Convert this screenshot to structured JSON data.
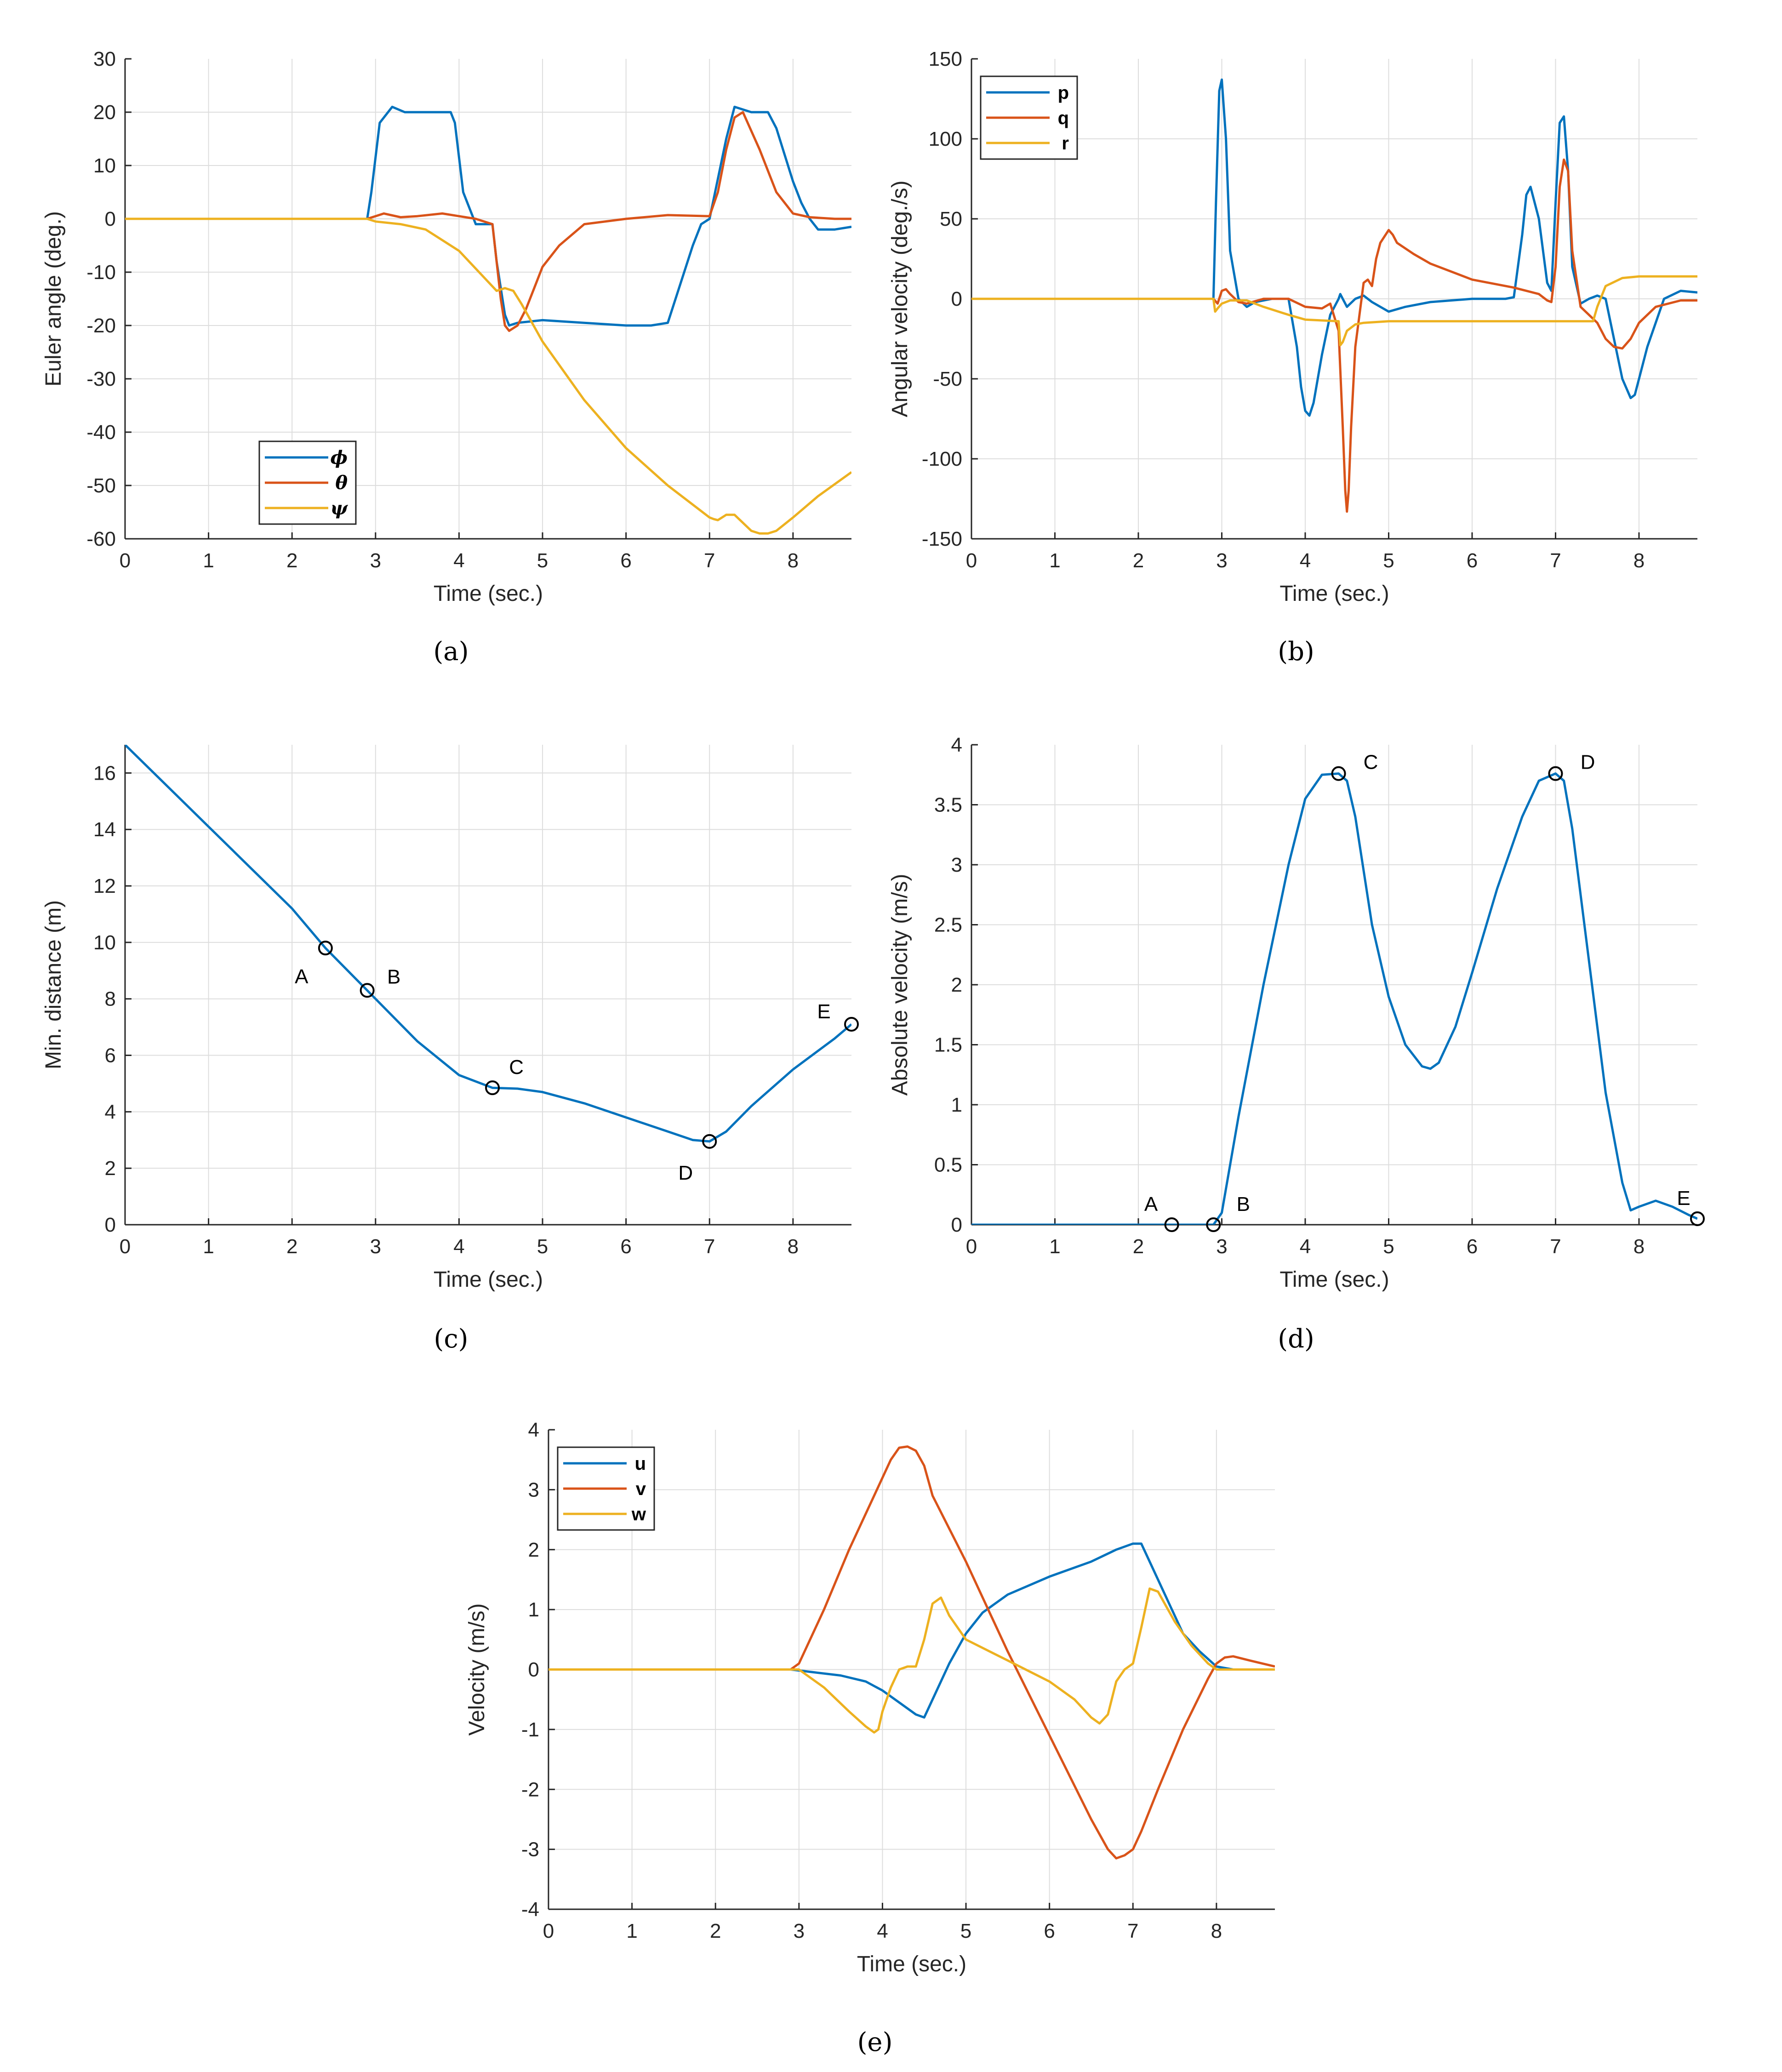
{
  "colors": {
    "blue": "#0072BD",
    "red": "#D95319",
    "yellow": "#EDB120",
    "grid": "#DDDDDD"
  },
  "panel_labels": [
    "(a)",
    "(b)",
    "(c)",
    "(d)",
    "(e)"
  ],
  "chart_data": [
    {
      "id": "a",
      "type": "line",
      "xlabel": "Time (sec.)",
      "ylabel": "Euler angle (deg.)",
      "xlim": [
        0,
        8.7
      ],
      "ylim": [
        -60,
        30
      ],
      "xticks": [
        0,
        1,
        2,
        3,
        4,
        5,
        6,
        7,
        8
      ],
      "yticks": [
        -60,
        -50,
        -40,
        -30,
        -20,
        -10,
        0,
        10,
        20,
        30
      ],
      "legend": {
        "position": "bottom-left",
        "entries": [
          "ϕ",
          "θ",
          "ψ"
        ]
      },
      "series": [
        {
          "name": "ϕ",
          "color": "blue",
          "x": [
            0,
            2.9,
            2.95,
            3.05,
            3.2,
            3.35,
            3.5,
            3.9,
            3.95,
            4.05,
            4.2,
            4.4,
            4.45,
            4.55,
            4.6,
            4.7,
            5,
            5.5,
            6,
            6.3,
            6.5,
            6.8,
            6.9,
            7,
            7.2,
            7.3,
            7.5,
            7.7,
            7.8,
            7.9,
            8,
            8.1,
            8.2,
            8.3,
            8.5,
            8.7
          ],
          "y": [
            0,
            0,
            5,
            18,
            21,
            20,
            20,
            20,
            18,
            5,
            -1,
            -1,
            -8,
            -18,
            -20,
            -19.5,
            -19,
            -19.5,
            -20,
            -20,
            -19.5,
            -5,
            -1,
            0,
            15,
            21,
            20,
            20,
            17,
            12,
            7,
            3,
            0,
            -2,
            -2,
            -1.5
          ]
        },
        {
          "name": "θ",
          "color": "red",
          "x": [
            0,
            2.9,
            3.0,
            3.1,
            3.3,
            3.5,
            3.8,
            4.0,
            4.2,
            4.4,
            4.5,
            4.55,
            4.6,
            4.65,
            4.7,
            4.8,
            4.9,
            5.0,
            5.2,
            5.5,
            6.0,
            6.5,
            7.0,
            7.1,
            7.2,
            7.3,
            7.4,
            7.6,
            7.8,
            8.0,
            8.2,
            8.5,
            8.7
          ],
          "y": [
            0,
            0,
            0.5,
            1,
            0.3,
            0.5,
            1,
            0.5,
            0,
            -1,
            -15,
            -20,
            -21,
            -20.5,
            -20,
            -17,
            -13,
            -9,
            -5,
            -1,
            0,
            0.7,
            0.5,
            5,
            13,
            19,
            20,
            13,
            5,
            1,
            0.3,
            0,
            0
          ]
        },
        {
          "name": "ψ",
          "color": "yellow",
          "x": [
            0,
            2.9,
            3.0,
            3.3,
            3.6,
            4.0,
            4.3,
            4.45,
            4.55,
            4.65,
            4.75,
            5.0,
            5.5,
            6.0,
            6.5,
            7.0,
            7.05,
            7.1,
            7.2,
            7.3,
            7.4,
            7.5,
            7.6,
            7.7,
            7.8,
            8.0,
            8.3,
            8.7
          ],
          "y": [
            0,
            0,
            -0.5,
            -1,
            -2,
            -6,
            -11,
            -13.5,
            -13,
            -13.5,
            -16,
            -23,
            -34,
            -43,
            -50,
            -56,
            -56.3,
            -56.5,
            -55.5,
            -55.5,
            -57,
            -58.5,
            -59,
            -59,
            -58.5,
            -56,
            -52,
            -47.5
          ]
        }
      ]
    },
    {
      "id": "b",
      "type": "line",
      "xlabel": "Time (sec.)",
      "ylabel": "Angular velocity (deg./s)",
      "xlim": [
        0,
        8.7
      ],
      "ylim": [
        -150,
        150
      ],
      "xticks": [
        0,
        1,
        2,
        3,
        4,
        5,
        6,
        7,
        8
      ],
      "yticks": [
        -150,
        -100,
        -50,
        0,
        50,
        100,
        150
      ],
      "legend": {
        "position": "top-left",
        "entries": [
          "p",
          "q",
          "r"
        ]
      },
      "series": [
        {
          "name": "p",
          "color": "blue",
          "x": [
            0,
            2.9,
            2.93,
            2.97,
            3.0,
            3.05,
            3.1,
            3.2,
            3.3,
            3.4,
            3.6,
            3.8,
            3.9,
            3.95,
            4.0,
            4.05,
            4.1,
            4.2,
            4.3,
            4.4,
            4.42,
            4.45,
            4.5,
            4.6,
            4.7,
            4.8,
            5.0,
            5.2,
            5.5,
            6.0,
            6.4,
            6.5,
            6.6,
            6.65,
            6.7,
            6.8,
            6.9,
            6.95,
            7.0,
            7.05,
            7.1,
            7.15,
            7.2,
            7.3,
            7.4,
            7.5,
            7.6,
            7.7,
            7.8,
            7.9,
            7.95,
            8.0,
            8.1,
            8.3,
            8.5,
            8.7
          ],
          "y": [
            0,
            0,
            60,
            130,
            137,
            100,
            30,
            0,
            -5,
            -2,
            0,
            0,
            -30,
            -55,
            -70,
            -73,
            -65,
            -35,
            -10,
            0,
            3,
            0,
            -5,
            0,
            2,
            -2,
            -8,
            -5,
            -2,
            0,
            0,
            1,
            40,
            65,
            70,
            50,
            10,
            5,
            60,
            110,
            114,
            80,
            20,
            -3,
            0,
            2,
            0,
            -25,
            -50,
            -62,
            -60,
            -50,
            -30,
            0,
            5,
            4
          ]
        },
        {
          "name": "q",
          "color": "red",
          "x": [
            0,
            2.9,
            2.95,
            3.0,
            3.05,
            3.1,
            3.2,
            3.3,
            3.5,
            3.8,
            4.0,
            4.2,
            4.3,
            4.4,
            4.45,
            4.48,
            4.5,
            4.52,
            4.55,
            4.6,
            4.7,
            4.75,
            4.8,
            4.85,
            4.9,
            5.0,
            5.05,
            5.1,
            5.3,
            5.5,
            6.0,
            6.5,
            6.8,
            6.9,
            6.95,
            7.0,
            7.05,
            7.1,
            7.15,
            7.2,
            7.3,
            7.4,
            7.5,
            7.6,
            7.7,
            7.8,
            7.9,
            8.0,
            8.2,
            8.5,
            8.7
          ],
          "y": [
            0,
            0,
            -3,
            5,
            6,
            3,
            -2,
            -3,
            0,
            0,
            -5,
            -6,
            -3,
            -20,
            -80,
            -120,
            -133,
            -120,
            -80,
            -30,
            10,
            12,
            8,
            25,
            35,
            43,
            40,
            35,
            28,
            22,
            12,
            7,
            3,
            -1,
            -2,
            20,
            70,
            87,
            80,
            30,
            -5,
            -10,
            -15,
            -25,
            -30,
            -31,
            -25,
            -15,
            -5,
            -1,
            -1
          ]
        },
        {
          "name": "r",
          "color": "yellow",
          "x": [
            0,
            2.9,
            2.92,
            2.95,
            3.0,
            3.1,
            3.3,
            3.5,
            3.8,
            4.0,
            4.4,
            4.42,
            4.45,
            4.5,
            4.6,
            4.7,
            5.0,
            6.0,
            7.0,
            7.3,
            7.45,
            7.5,
            7.6,
            7.8,
            8.0,
            8.3,
            8.7
          ],
          "y": [
            0,
            0,
            -8,
            -6,
            -3,
            -1,
            -1,
            -5,
            -10,
            -13,
            -14,
            -29,
            -27,
            -20,
            -16,
            -15,
            -14,
            -14,
            -14,
            -14,
            -14,
            -5,
            8,
            13,
            14,
            14,
            14
          ]
        }
      ]
    },
    {
      "id": "c",
      "type": "line",
      "xlabel": "Time (sec.)",
      "ylabel": "Min. distance (m)",
      "xlim": [
        0,
        8.7
      ],
      "ylim": [
        0,
        17
      ],
      "xticks": [
        0,
        1,
        2,
        3,
        4,
        5,
        6,
        7,
        8
      ],
      "yticks": [
        0,
        2,
        4,
        6,
        8,
        10,
        12,
        14,
        16
      ],
      "series": [
        {
          "name": "distance",
          "color": "blue",
          "x": [
            0,
            1,
            2,
            2.4,
            2.9,
            3.5,
            4.0,
            4.4,
            4.7,
            5.0,
            5.5,
            6.0,
            6.5,
            6.8,
            7.0,
            7.2,
            7.5,
            8.0,
            8.5,
            8.7
          ],
          "y": [
            17,
            14.1,
            11.2,
            9.8,
            8.3,
            6.5,
            5.3,
            4.85,
            4.82,
            4.7,
            4.3,
            3.8,
            3.3,
            3.0,
            2.95,
            3.3,
            4.2,
            5.5,
            6.6,
            7.1
          ]
        }
      ],
      "markers": [
        {
          "label": "A",
          "x": 2.4,
          "y": 9.8
        },
        {
          "label": "B",
          "x": 2.9,
          "y": 8.3
        },
        {
          "label": "C",
          "x": 4.4,
          "y": 4.85
        },
        {
          "label": "D",
          "x": 7.0,
          "y": 2.95
        },
        {
          "label": "E",
          "x": 8.7,
          "y": 7.1
        }
      ]
    },
    {
      "id": "d",
      "type": "line",
      "xlabel": "Time (sec.)",
      "ylabel": "Absolute velocity (m/s)",
      "xlim": [
        0,
        8.7
      ],
      "ylim": [
        0,
        4
      ],
      "xticks": [
        0,
        1,
        2,
        3,
        4,
        5,
        6,
        7,
        8
      ],
      "yticks": [
        0,
        0.5,
        1,
        1.5,
        2,
        2.5,
        3,
        3.5,
        4
      ],
      "series": [
        {
          "name": "velocity",
          "color": "blue",
          "x": [
            0,
            2.9,
            3.0,
            3.2,
            3.5,
            3.8,
            4.0,
            4.2,
            4.4,
            4.5,
            4.6,
            4.8,
            5.0,
            5.2,
            5.4,
            5.5,
            5.6,
            5.8,
            6.0,
            6.3,
            6.6,
            6.8,
            7.0,
            7.1,
            7.2,
            7.4,
            7.6,
            7.8,
            7.9,
            8.0,
            8.2,
            8.4,
            8.6,
            8.7
          ],
          "y": [
            0,
            0,
            0.1,
            0.9,
            2.0,
            3.0,
            3.55,
            3.75,
            3.76,
            3.7,
            3.4,
            2.5,
            1.9,
            1.5,
            1.32,
            1.3,
            1.35,
            1.65,
            2.1,
            2.8,
            3.4,
            3.7,
            3.76,
            3.7,
            3.3,
            2.2,
            1.1,
            0.35,
            0.12,
            0.15,
            0.2,
            0.15,
            0.08,
            0.05
          ]
        }
      ],
      "markers": [
        {
          "label": "A",
          "x": 2.4,
          "y": 0
        },
        {
          "label": "B",
          "x": 2.9,
          "y": 0
        },
        {
          "label": "C",
          "x": 4.4,
          "y": 3.76
        },
        {
          "label": "D",
          "x": 7.0,
          "y": 3.76
        },
        {
          "label": "E",
          "x": 8.7,
          "y": 0.05
        }
      ]
    },
    {
      "id": "e",
      "type": "line",
      "xlabel": "Time (sec.)",
      "ylabel": "Velocity (m/s)",
      "xlim": [
        0,
        8.7
      ],
      "ylim": [
        -4,
        4
      ],
      "xticks": [
        0,
        1,
        2,
        3,
        4,
        5,
        6,
        7,
        8
      ],
      "yticks": [
        -4,
        -3,
        -2,
        -1,
        0,
        1,
        2,
        3,
        4
      ],
      "legend": {
        "position": "top-left",
        "entries": [
          "u",
          "v",
          "w"
        ]
      },
      "series": [
        {
          "name": "u",
          "color": "blue",
          "x": [
            0,
            2.9,
            3.2,
            3.5,
            3.8,
            4.0,
            4.2,
            4.4,
            4.5,
            4.6,
            4.8,
            5.0,
            5.2,
            5.5,
            6.0,
            6.5,
            6.8,
            7.0,
            7.1,
            7.2,
            7.4,
            7.6,
            7.8,
            8.0,
            8.2,
            8.7
          ],
          "y": [
            0,
            0,
            -0.05,
            -0.1,
            -0.2,
            -0.35,
            -0.55,
            -0.75,
            -0.8,
            -0.5,
            0.1,
            0.6,
            0.95,
            1.25,
            1.55,
            1.8,
            2.0,
            2.1,
            2.1,
            1.8,
            1.2,
            0.6,
            0.3,
            0.05,
            0,
            0
          ]
        },
        {
          "name": "v",
          "color": "red",
          "x": [
            0,
            2.9,
            3.0,
            3.3,
            3.6,
            3.9,
            4.1,
            4.2,
            4.3,
            4.4,
            4.5,
            4.6,
            5.0,
            5.5,
            6.0,
            6.5,
            6.7,
            6.8,
            6.9,
            7.0,
            7.1,
            7.3,
            7.6,
            7.9,
            8.0,
            8.1,
            8.2,
            8.4,
            8.7
          ],
          "y": [
            0,
            0,
            0.1,
            1.0,
            2.0,
            2.9,
            3.5,
            3.7,
            3.72,
            3.65,
            3.4,
            2.9,
            1.8,
            0.3,
            -1.1,
            -2.5,
            -3.0,
            -3.15,
            -3.1,
            -3.0,
            -2.7,
            -2.0,
            -1.0,
            -0.15,
            0.1,
            0.2,
            0.22,
            0.15,
            0.05
          ]
        },
        {
          "name": "w",
          "color": "yellow",
          "x": [
            0,
            2.9,
            3.0,
            3.3,
            3.6,
            3.8,
            3.9,
            3.95,
            4.0,
            4.1,
            4.2,
            4.3,
            4.4,
            4.5,
            4.6,
            4.7,
            4.8,
            5.0,
            5.5,
            6.0,
            6.3,
            6.5,
            6.6,
            6.7,
            6.8,
            6.9,
            7.0,
            7.1,
            7.2,
            7.3,
            7.5,
            7.7,
            7.9,
            8.0,
            8.3,
            8.7
          ],
          "y": [
            0,
            0,
            0,
            -0.3,
            -0.7,
            -0.95,
            -1.05,
            -1.0,
            -0.7,
            -0.3,
            0,
            0.05,
            0.05,
            0.5,
            1.1,
            1.2,
            0.9,
            0.5,
            0.15,
            -0.2,
            -0.5,
            -0.8,
            -0.9,
            -0.75,
            -0.2,
            0.0,
            0.1,
            0.7,
            1.35,
            1.3,
            0.8,
            0.4,
            0.1,
            0,
            0,
            0
          ]
        }
      ]
    }
  ]
}
